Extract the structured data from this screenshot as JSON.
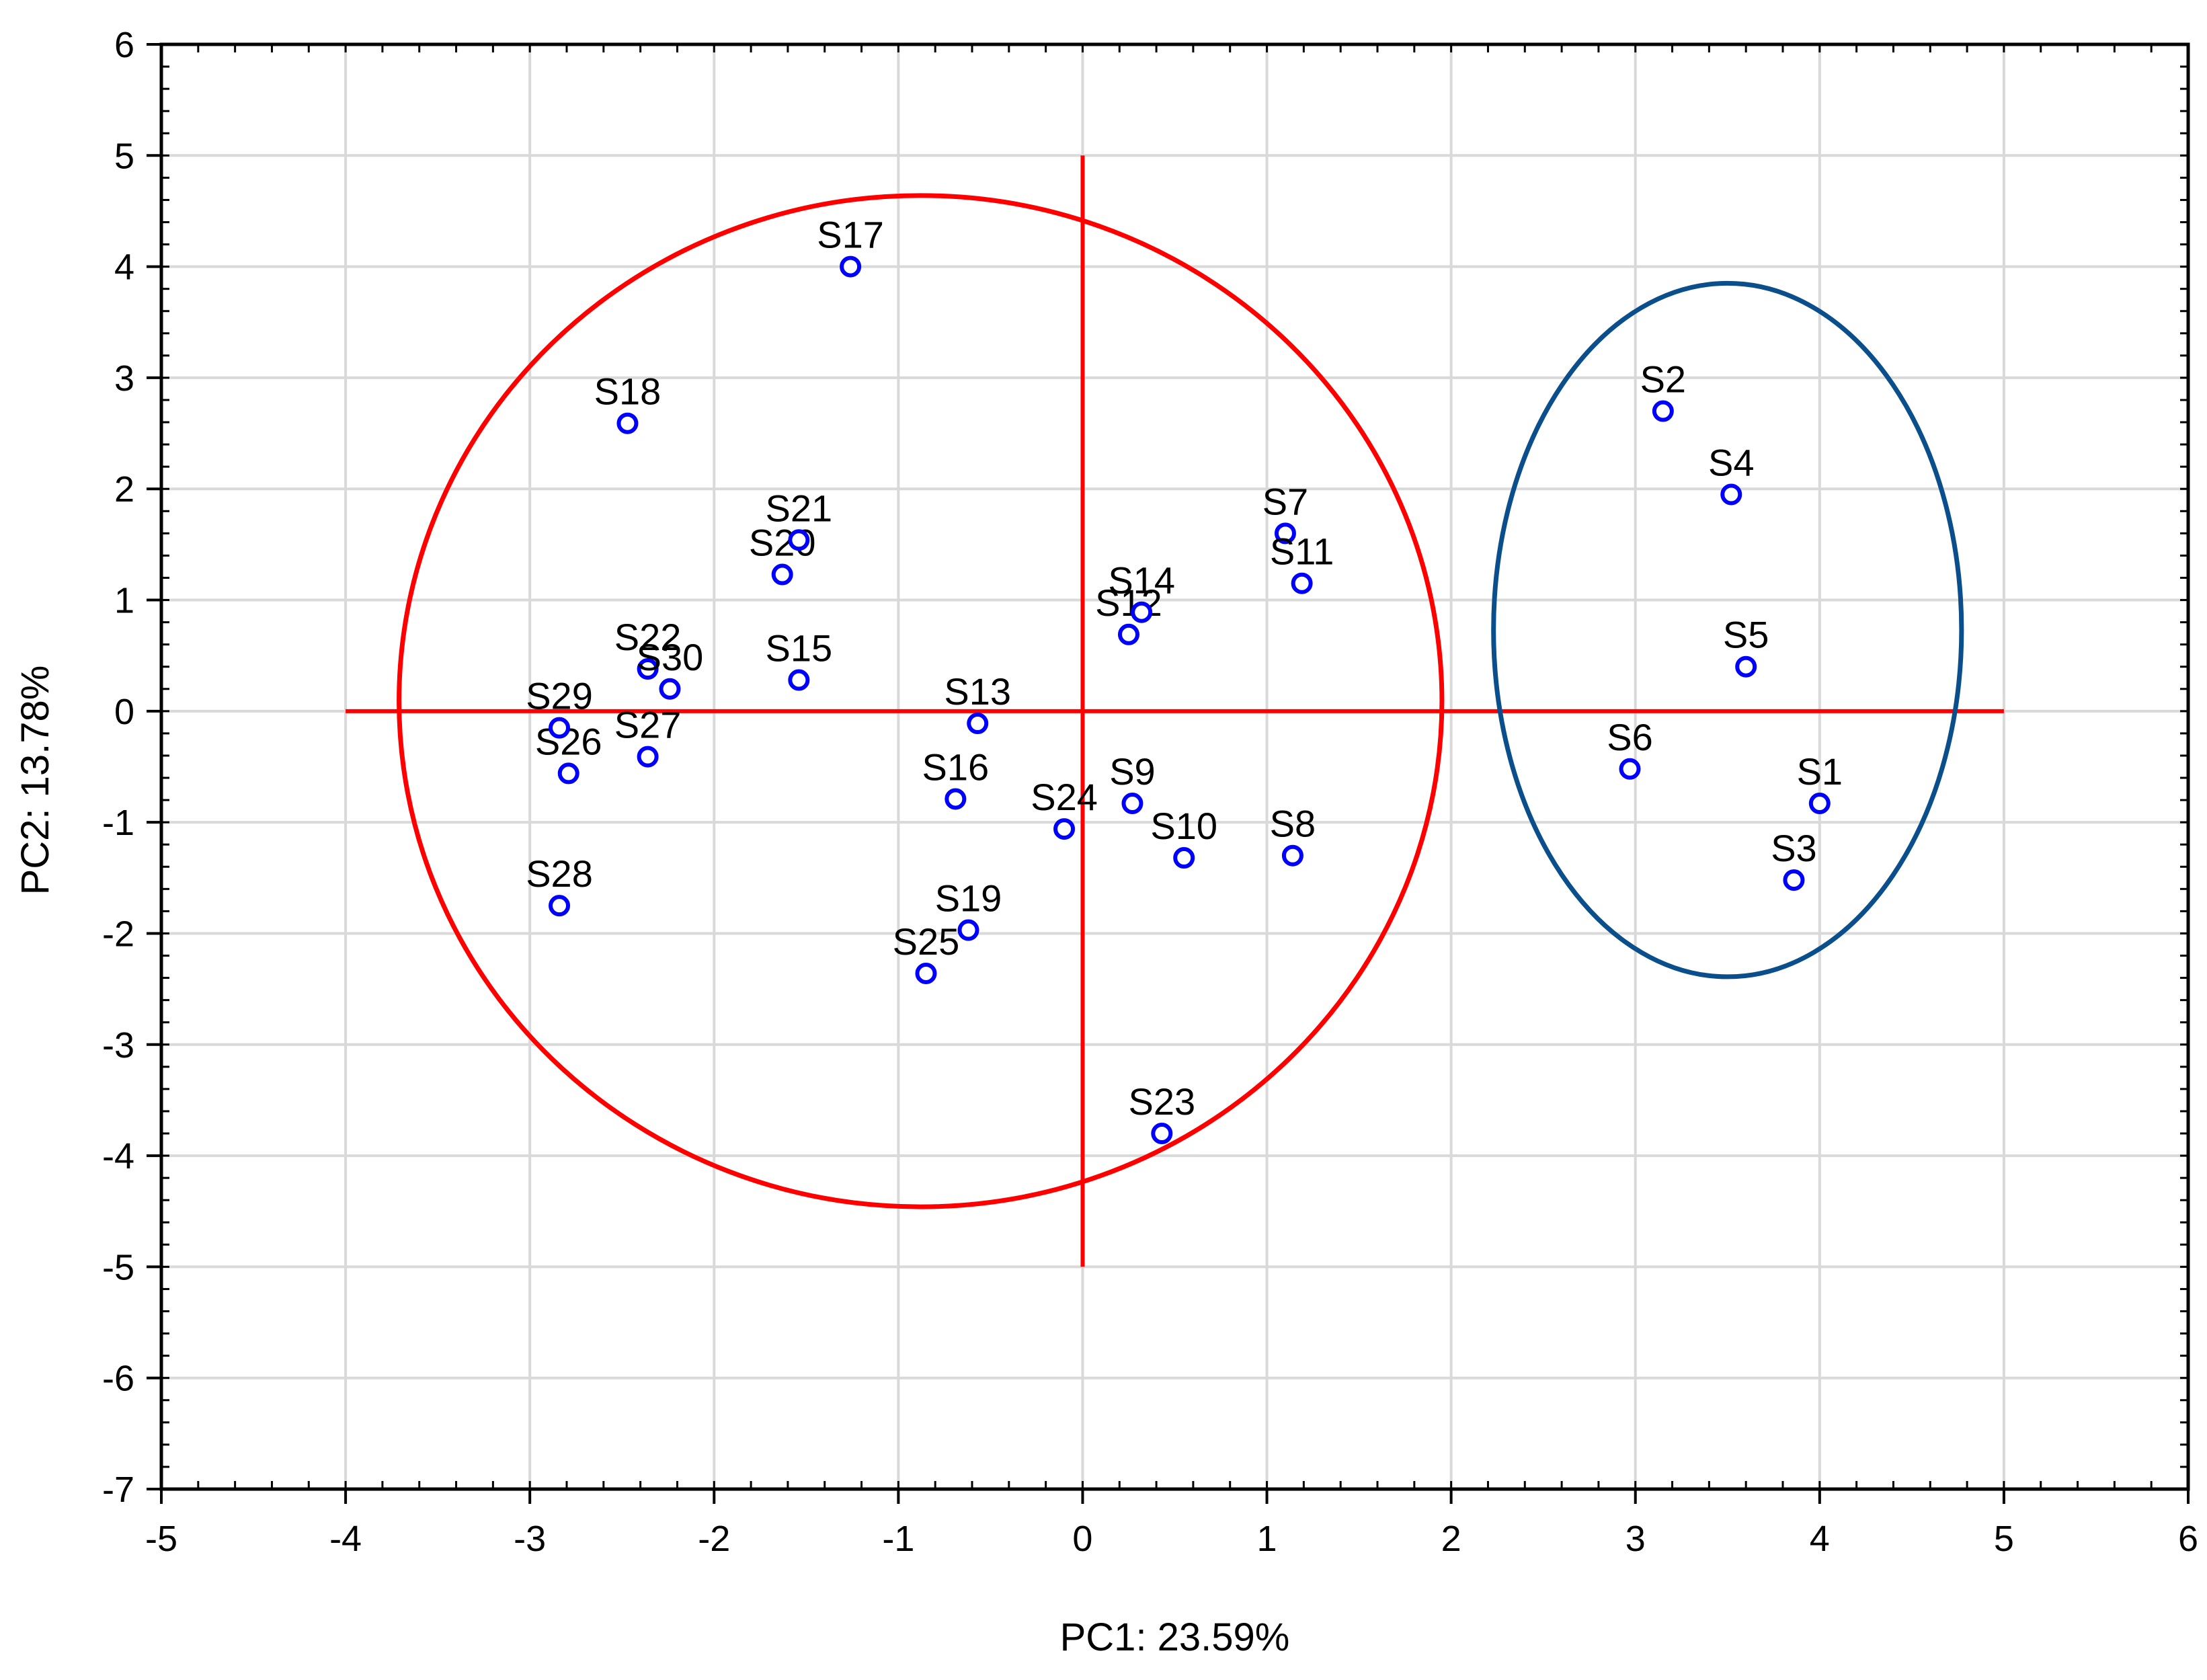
{
  "chart_data": {
    "type": "scatter",
    "title": "",
    "xlabel": "PC1: 23.59%",
    "ylabel": "PC2: 13.78%",
    "xlim": [
      -5,
      6
    ],
    "ylim": [
      -7,
      6
    ],
    "xticks": [
      -5,
      -4,
      -3,
      -2,
      -1,
      0,
      1,
      2,
      3,
      4,
      5,
      6
    ],
    "yticks": [
      -7,
      -6,
      -5,
      -4,
      -3,
      -2,
      -1,
      0,
      1,
      2,
      3,
      4,
      5,
      6
    ],
    "grid": true,
    "point_color": "#0000ff",
    "points": [
      {
        "label": "S1",
        "x": 4.0,
        "y": -0.83
      },
      {
        "label": "S2",
        "x": 3.15,
        "y": 2.7
      },
      {
        "label": "S3",
        "x": 3.86,
        "y": -1.52
      },
      {
        "label": "S4",
        "x": 3.52,
        "y": 1.95
      },
      {
        "label": "S5",
        "x": 3.6,
        "y": 0.4
      },
      {
        "label": "S6",
        "x": 2.97,
        "y": -0.52
      },
      {
        "label": "S7",
        "x": 1.1,
        "y": 1.6
      },
      {
        "label": "S8",
        "x": 1.14,
        "y": -1.3
      },
      {
        "label": "S9",
        "x": 0.27,
        "y": -0.83
      },
      {
        "label": "S10",
        "x": 0.55,
        "y": -1.32
      },
      {
        "label": "S11",
        "x": 1.19,
        "y": 1.15
      },
      {
        "label": "S12",
        "x": 0.25,
        "y": 0.69
      },
      {
        "label": "S13",
        "x": -0.57,
        "y": -0.11
      },
      {
        "label": "S14",
        "x": 0.32,
        "y": 0.89
      },
      {
        "label": "S15",
        "x": -1.54,
        "y": 0.28
      },
      {
        "label": "S16",
        "x": -0.69,
        "y": -0.79
      },
      {
        "label": "S17",
        "x": -1.26,
        "y": 4.0
      },
      {
        "label": "S18",
        "x": -2.47,
        "y": 2.59
      },
      {
        "label": "S19",
        "x": -0.62,
        "y": -1.97
      },
      {
        "label": "S20",
        "x": -1.63,
        "y": 1.23
      },
      {
        "label": "S21",
        "x": -1.54,
        "y": 1.54
      },
      {
        "label": "S22",
        "x": -2.36,
        "y": 0.38
      },
      {
        "label": "S23",
        "x": 0.43,
        "y": -3.8
      },
      {
        "label": "S24",
        "x": -0.1,
        "y": -1.06
      },
      {
        "label": "S25",
        "x": -0.85,
        "y": -2.36
      },
      {
        "label": "S26",
        "x": -2.79,
        "y": -0.56
      },
      {
        "label": "S27",
        "x": -2.36,
        "y": -0.41
      },
      {
        "label": "S28",
        "x": -2.84,
        "y": -1.75
      },
      {
        "label": "S29",
        "x": -2.84,
        "y": -0.15
      },
      {
        "label": "S30",
        "x": -2.24,
        "y": 0.2
      }
    ],
    "reference_lines": [
      {
        "color": "#ff0000",
        "x1": -4,
        "y1": 0,
        "x2": 5,
        "y2": 0
      },
      {
        "color": "#ff0000",
        "x1": 0,
        "y1": 5,
        "x2": 0,
        "y2": -5
      }
    ],
    "ellipses": [
      {
        "color": "#ff0000",
        "cx": -0.88,
        "cy": 0.09,
        "rx": 2.83,
        "ry": 4.55
      },
      {
        "color": "#0a4f8c",
        "cx": 3.5,
        "cy": 0.73,
        "rx": 1.27,
        "ry": 3.12
      }
    ]
  }
}
